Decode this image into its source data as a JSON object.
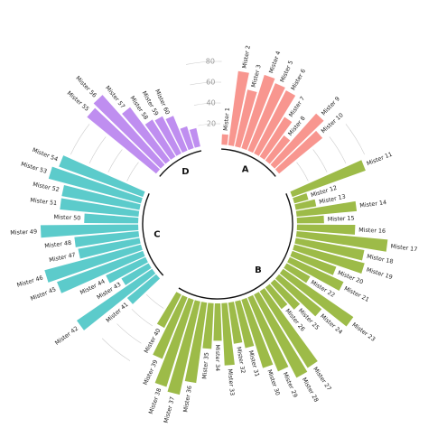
{
  "chart_data": {
    "type": "bar",
    "layout": "circular",
    "title": "",
    "scale_ticks": [
      20,
      40,
      60,
      80
    ],
    "groups": [
      {
        "name": "A",
        "color": "#F8968F",
        "items": [
          {
            "label": "Mister 1",
            "value": 10
          },
          {
            "label": "Mister 2",
            "value": 72
          },
          {
            "label": "Mister 3",
            "value": 56
          },
          {
            "label": "Mister 4",
            "value": 74
          },
          {
            "label": "Mister 5",
            "value": 70
          },
          {
            "label": "Mister 6",
            "value": 68
          },
          {
            "label": "Mister 7",
            "value": 45
          },
          {
            "label": "Mister 8",
            "value": 30
          },
          {
            "label": "Mister 9",
            "value": 66
          },
          {
            "label": "Mister 10",
            "value": 54
          }
        ]
      },
      {
        "name": "B",
        "color": "#9DBB48",
        "items": [
          {
            "label": "Mister 11",
            "value": 75
          },
          {
            "label": "Mister 12",
            "value": 14
          },
          {
            "label": "Mister 13",
            "value": 20
          },
          {
            "label": "Mister 14",
            "value": 58
          },
          {
            "label": "Mister 15",
            "value": 26
          },
          {
            "label": "Mister 16",
            "value": 56
          },
          {
            "label": "Mister 17",
            "value": 88
          },
          {
            "label": "Mister 18",
            "value": 67
          },
          {
            "label": "Mister 19",
            "value": 70
          },
          {
            "label": "Mister 20",
            "value": 45
          },
          {
            "label": "Mister 21",
            "value": 57
          },
          {
            "label": "Mister 22",
            "value": 26
          },
          {
            "label": "Mister 23",
            "value": 82
          },
          {
            "label": "Mister 24",
            "value": 53
          },
          {
            "label": "Mister 25",
            "value": 34
          },
          {
            "label": "Mister 26",
            "value": 26
          },
          {
            "label": "Mister 27",
            "value": 87
          },
          {
            "label": "Mister 28",
            "value": 90
          },
          {
            "label": "Mister 29",
            "value": 77
          },
          {
            "label": "Mister 30",
            "value": 69
          },
          {
            "label": "Mister 31",
            "value": 46
          },
          {
            "label": "Mister 32",
            "value": 40
          },
          {
            "label": "Mister 33",
            "value": 60
          },
          {
            "label": "Mister 34",
            "value": 36
          },
          {
            "label": "Mister 35",
            "value": 44
          },
          {
            "label": "Mister 36",
            "value": 78
          },
          {
            "label": "Mister 37",
            "value": 92
          },
          {
            "label": "Mister 38",
            "value": 88
          },
          {
            "label": "Mister 39",
            "value": 64
          },
          {
            "label": "Mister 40",
            "value": 36
          }
        ]
      },
      {
        "name": "C",
        "color": "#5CCBCB",
        "items": [
          {
            "label": "Mister 41",
            "value": 36
          },
          {
            "label": "Mister 42",
            "value": 88
          },
          {
            "label": "Mister 43",
            "value": 30
          },
          {
            "label": "Mister 44",
            "value": 42
          },
          {
            "label": "Mister 45",
            "value": 88
          },
          {
            "label": "Mister 46",
            "value": 96
          },
          {
            "label": "Mister 47",
            "value": 60
          },
          {
            "label": "Mister 48",
            "value": 62
          },
          {
            "label": "Mister 49",
            "value": 94
          },
          {
            "label": "Mister 50",
            "value": 52
          },
          {
            "label": "Mister 51",
            "value": 76
          },
          {
            "label": "Mister 52",
            "value": 76
          },
          {
            "label": "Mister 53",
            "value": 92
          },
          {
            "label": "Mister 54",
            "value": 86
          }
        ]
      },
      {
        "name": "D",
        "color": "#BF8EF0",
        "items": [
          {
            "label": "Mister 55",
            "value": 86
          },
          {
            "label": "Mister 56",
            "value": 90
          },
          {
            "label": "Mister 57",
            "value": 64
          },
          {
            "label": "Mister 58",
            "value": 42
          },
          {
            "label": "Mister 59",
            "value": 40
          },
          {
            "label": "Mister 60",
            "value": 36
          },
          {
            "label": "",
            "value": 22
          },
          {
            "label": "",
            "value": 18
          }
        ]
      }
    ]
  }
}
